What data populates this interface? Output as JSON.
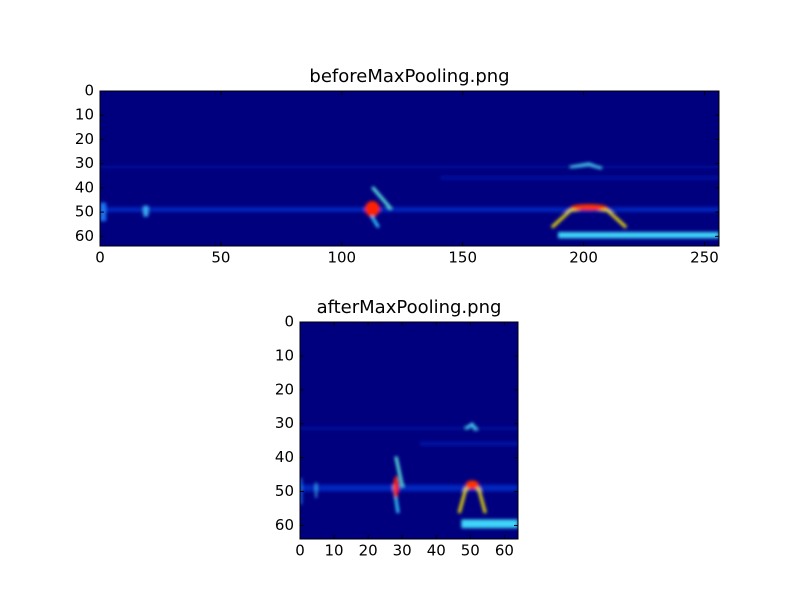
{
  "chart_data": [
    {
      "type": "image",
      "title": "beforeMaxPooling.png",
      "xlim": [
        0,
        256
      ],
      "xticks": [
        0,
        50,
        100,
        150,
        200,
        250
      ],
      "ylim": [
        64,
        0
      ],
      "yticks": [
        0,
        10,
        20,
        30,
        40,
        50,
        60
      ]
    },
    {
      "type": "image",
      "title": "afterMaxPooling.png",
      "xlim": [
        0,
        64
      ],
      "xticks": [
        0,
        10,
        20,
        30,
        40,
        50,
        60
      ],
      "ylim": [
        64,
        0
      ],
      "yticks": [
        0,
        10,
        20,
        30,
        40,
        50,
        60
      ]
    }
  ]
}
